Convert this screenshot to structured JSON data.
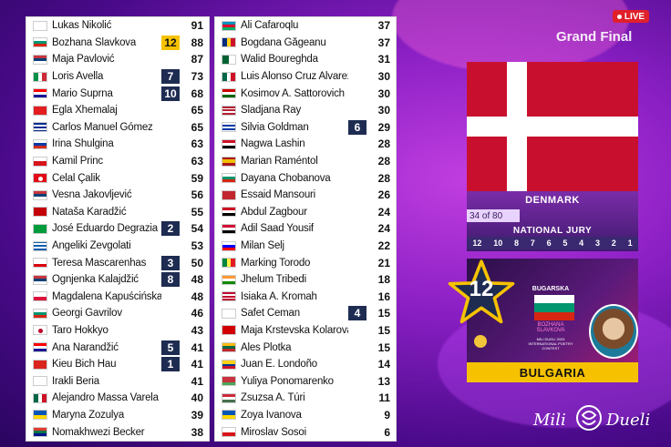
{
  "header": {
    "live_label": "LIVE",
    "stage_title": "Grand Final"
  },
  "col1": [
    {
      "name": "Lukas Nikolić",
      "total": "91",
      "award": "",
      "flag": "ba"
    },
    {
      "name": "Bozhana Slavkova",
      "total": "88",
      "award": "12",
      "flag": "bg"
    },
    {
      "name": "Maja Pavlović",
      "total": "87",
      "award": "",
      "flag": "rs"
    },
    {
      "name": "Loris Avella",
      "total": "73",
      "award": "7",
      "flag": "it"
    },
    {
      "name": "Mario Šuprna",
      "total": "68",
      "award": "10",
      "flag": "hr"
    },
    {
      "name": "Egla Xhemalaj",
      "total": "65",
      "award": "",
      "flag": "al"
    },
    {
      "name": "Carlos Manuel Gómez",
      "total": "65",
      "award": "",
      "flag": "cu"
    },
    {
      "name": "Irina Shulgina",
      "total": "63",
      "award": "",
      "flag": "ru"
    },
    {
      "name": "Kamil Princ",
      "total": "63",
      "award": "",
      "flag": "cz"
    },
    {
      "name": "Celal Çalik",
      "total": "59",
      "award": "",
      "flag": "tr"
    },
    {
      "name": "Vesna Jakovljević",
      "total": "56",
      "award": "",
      "flag": "rs"
    },
    {
      "name": "Nataša Karadžić",
      "total": "55",
      "award": "",
      "flag": "me"
    },
    {
      "name": "José Eduardo Degrazia",
      "total": "54",
      "award": "2",
      "flag": "br"
    },
    {
      "name": "Angeliki Zevgolati",
      "total": "53",
      "award": "",
      "flag": "gr"
    },
    {
      "name": "Teresa Mascarenhas",
      "total": "50",
      "award": "3",
      "flag": "gi"
    },
    {
      "name": "Ognjenka Kalajdžić",
      "total": "48",
      "award": "8",
      "flag": "rs"
    },
    {
      "name": "Magdalena Kapuścińska",
      "total": "48",
      "award": "",
      "flag": "pl"
    },
    {
      "name": "Georgi Gavrilov",
      "total": "46",
      "award": "",
      "flag": "bg"
    },
    {
      "name": "Taro Hokkyo",
      "total": "43",
      "award": "",
      "flag": "jp"
    },
    {
      "name": "Ana Narandžić",
      "total": "41",
      "award": "5",
      "flag": "hr"
    },
    {
      "name": "Kieu Bich Hau",
      "total": "41",
      "award": "1",
      "flag": "vn"
    },
    {
      "name": "Irakli Beria",
      "total": "41",
      "award": "",
      "flag": "ge"
    },
    {
      "name": "Alejandro Massa Varela",
      "total": "40",
      "award": "",
      "flag": "mx"
    },
    {
      "name": "Maryna Zozulya",
      "total": "39",
      "award": "",
      "flag": "ua"
    },
    {
      "name": "Nomakhwezi Becker",
      "total": "38",
      "award": "",
      "flag": "za"
    }
  ],
  "col2": [
    {
      "name": "Ali Cafaroqlu",
      "total": "37",
      "award": "",
      "flag": "az"
    },
    {
      "name": "Bogdana Găgeanu",
      "total": "37",
      "award": "",
      "flag": "ro"
    },
    {
      "name": "Walid Boureghda",
      "total": "31",
      "award": "",
      "flag": "dz"
    },
    {
      "name": "Luis Alonso Cruz Alvarez",
      "total": "30",
      "award": "",
      "flag": "mx"
    },
    {
      "name": "Kosimov A. Sattorovich",
      "total": "30",
      "award": "",
      "flag": "tj"
    },
    {
      "name": "Sladjana Ray",
      "total": "30",
      "award": "",
      "flag": "us"
    },
    {
      "name": "Silvia Goldman",
      "total": "29",
      "award": "6",
      "flag": "uy"
    },
    {
      "name": "Nagwa Lashin",
      "total": "28",
      "award": "",
      "flag": "eg"
    },
    {
      "name": "Marian Raméntol",
      "total": "28",
      "award": "",
      "flag": "es"
    },
    {
      "name": "Dayana Chobanova",
      "total": "28",
      "award": "",
      "flag": "bg"
    },
    {
      "name": "Essaid Mansouri",
      "total": "26",
      "award": "",
      "flag": "ma"
    },
    {
      "name": "Abdul Zagbour",
      "total": "24",
      "award": "",
      "flag": "sy"
    },
    {
      "name": "Adil Saad Yousif",
      "total": "24",
      "award": "",
      "flag": "sd"
    },
    {
      "name": "Milan Šelj",
      "total": "22",
      "award": "",
      "flag": "si"
    },
    {
      "name": "Marking Torodo",
      "total": "21",
      "award": "",
      "flag": "sn"
    },
    {
      "name": "Jhelum Tribedi",
      "total": "18",
      "award": "",
      "flag": "in"
    },
    {
      "name": "Isiaka A. Kromah",
      "total": "16",
      "award": "",
      "flag": "lr"
    },
    {
      "name": "Safet Ćeman",
      "total": "15",
      "award": "4",
      "flag": "ba"
    },
    {
      "name": "Maja Krstevska Kolarova",
      "total": "15",
      "award": "",
      "flag": "mk"
    },
    {
      "name": "Ales Plotka",
      "total": "15",
      "award": "",
      "flag": "lt"
    },
    {
      "name": "Juan E. Londoño",
      "total": "14",
      "award": "",
      "flag": "co"
    },
    {
      "name": "Yuliya Ponomarenko",
      "total": "13",
      "award": "",
      "flag": "by"
    },
    {
      "name": "Zsuzsa A. Túri",
      "total": "11",
      "award": "",
      "flag": "hu"
    },
    {
      "name": "Zoya Ivanova",
      "total": "9",
      "award": "",
      "flag": "ua"
    },
    {
      "name": "Miroslav Sosoi",
      "total": "6",
      "award": "",
      "flag": "cz"
    }
  ],
  "voting": {
    "country": "DENMARK",
    "progress": "34 of 80",
    "jury_label": "NATIONAL JURY",
    "scale": [
      "12",
      "10",
      "8",
      "7",
      "6",
      "5",
      "4",
      "3",
      "2",
      "1"
    ],
    "awarded_points": "12",
    "awarded_country": "BULGARIA",
    "card_country": "BUGARSKA",
    "card_artist": "BOZHANA SLAVKOVA",
    "card_caption": "MILI DUELI 2023 INTERNATIONAL POETRY CONTEST"
  },
  "brand": {
    "word1": "Mili",
    "word2": "Dueli"
  },
  "colors": {
    "gold_badge": "#f6c200",
    "navy_badge": "#1e2c52",
    "denmark_red": "#c8102e",
    "live_red": "#e0202a"
  }
}
